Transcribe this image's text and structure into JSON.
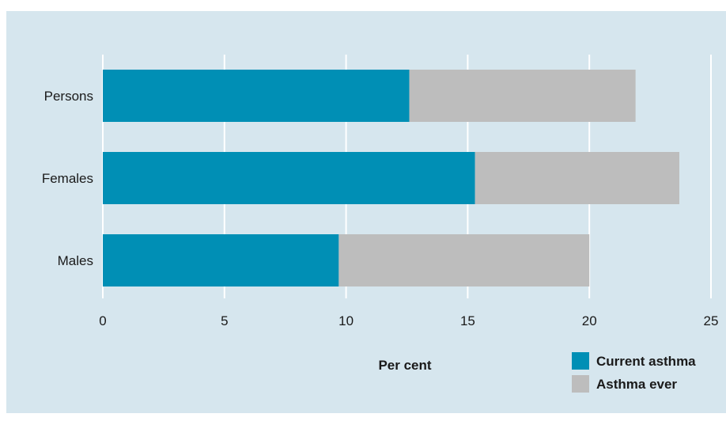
{
  "chart_data": {
    "type": "bar",
    "orientation": "horizontal",
    "stacked": true,
    "categories": [
      "Persons",
      "Females",
      "Males"
    ],
    "series": [
      {
        "name": "Current asthma",
        "values": [
          12.6,
          15.3,
          9.7
        ],
        "color": "#008fb5"
      },
      {
        "name": "Asthma ever",
        "values": [
          9.3,
          8.4,
          10.3
        ],
        "color": "#bdbdbd"
      }
    ],
    "totals": [
      21.9,
      23.7,
      20.0
    ],
    "xlabel": "Per cent",
    "ylabel": "",
    "xlim": [
      0,
      25
    ],
    "xticks": [
      "0",
      "5",
      "10",
      "15",
      "20",
      "25"
    ],
    "grid": "vertical",
    "legend": "bottom-right",
    "background": "#d6e6ee",
    "grid_color": "#ffffff"
  }
}
